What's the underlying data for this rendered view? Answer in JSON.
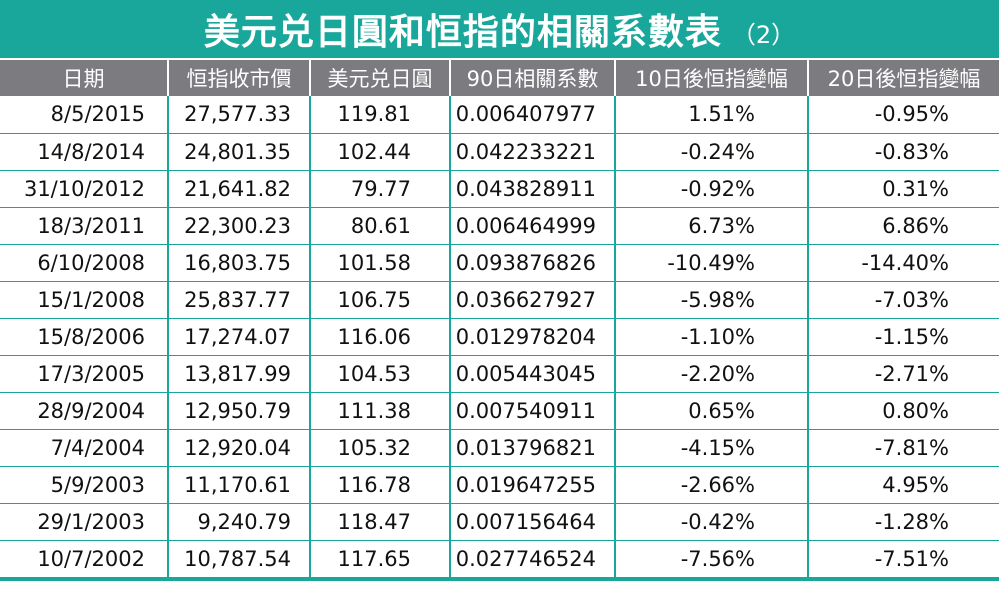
{
  "title": {
    "main": "美元兑日圓和恒指的相關系數表",
    "sub": "（2）"
  },
  "headers": [
    "日期",
    "恒指收市價",
    "美元兑日圓",
    "90日相關系數",
    "10日後恒指變幅",
    "20日後恒指變幅"
  ],
  "rows": [
    [
      "8/5/2015",
      "27,577.33",
      "119.81",
      "0.006407977",
      "1.51%",
      "-0.95%"
    ],
    [
      "14/8/2014",
      "24,801.35",
      "102.44",
      "0.042233221",
      "-0.24%",
      "-0.83%"
    ],
    [
      "31/10/2012",
      "21,641.82",
      "79.77",
      "0.043828911",
      "-0.92%",
      "0.31%"
    ],
    [
      "18/3/2011",
      "22,300.23",
      "80.61",
      "0.006464999",
      "6.73%",
      "6.86%"
    ],
    [
      "6/10/2008",
      "16,803.75",
      "101.58",
      "0.093876826",
      "-10.49%",
      "-14.40%"
    ],
    [
      "15/1/2008",
      "25,837.77",
      "106.75",
      "0.036627927",
      "-5.98%",
      "-7.03%"
    ],
    [
      "15/8/2006",
      "17,274.07",
      "116.06",
      "0.012978204",
      "-1.10%",
      "-1.15%"
    ],
    [
      "17/3/2005",
      "13,817.99",
      "104.53",
      "0.005443045",
      "-2.20%",
      "-2.71%"
    ],
    [
      "28/9/2004",
      "12,950.79",
      "111.38",
      "0.007540911",
      "0.65%",
      "0.80%"
    ],
    [
      "7/4/2004",
      "12,920.04",
      "105.32",
      "0.013796821",
      "-4.15%",
      "-7.81%"
    ],
    [
      "5/9/2003",
      "11,170.61",
      "116.78",
      "0.019647255",
      "-2.66%",
      "4.95%"
    ],
    [
      "29/1/2003",
      "9,240.79",
      "118.47",
      "0.007156464",
      "-0.42%",
      "-1.28%"
    ],
    [
      "10/7/2002",
      "10,787.54",
      "117.65",
      "0.027746524",
      "-7.56%",
      "-7.51%"
    ]
  ],
  "colors": {
    "accent": "#1aa79b",
    "header_bg": "#7c7c80"
  }
}
